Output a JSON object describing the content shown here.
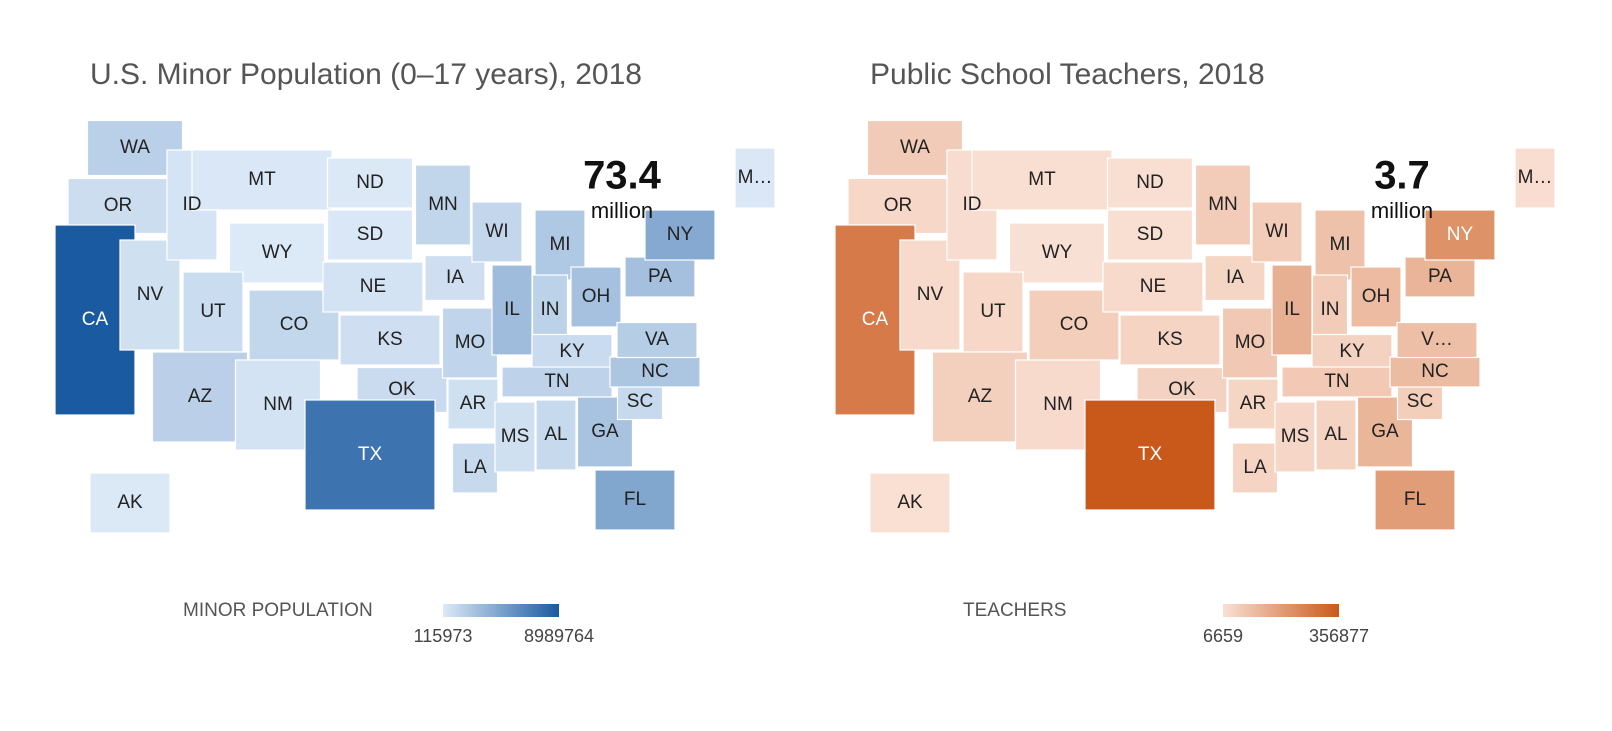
{
  "chart_data": [
    {
      "type": "choropleth",
      "title": "U.S. Minor Population (0–17 years), 2018",
      "headline": "73.4",
      "headline_unit": "million",
      "legend_title": "MINOR POPULATION",
      "legend_min": 115973,
      "legend_max": 8989764,
      "color_low": "#dce9f7",
      "color_high": "#1a5aa0",
      "regions": [
        "WA",
        "OR",
        "CA",
        "NV",
        "ID",
        "MT",
        "WY",
        "UT",
        "AZ",
        "CO",
        "NM",
        "ND",
        "SD",
        "NE",
        "KS",
        "OK",
        "TX",
        "MN",
        "IA",
        "MO",
        "AR",
        "LA",
        "WI",
        "IL",
        "MI",
        "IN",
        "OH",
        "KY",
        "TN",
        "MS",
        "AL",
        "GA",
        "FL",
        "SC",
        "NC",
        "VA",
        "PA",
        "NY",
        "M…",
        "AK"
      ],
      "values": [
        1690000,
        870000,
        8989764,
        700000,
        450000,
        230000,
        136000,
        930000,
        1640000,
        1260000,
        480000,
        180000,
        220000,
        470000,
        710000,
        960000,
        7400000,
        1300000,
        730000,
        1380000,
        700000,
        1100000,
        1280000,
        2880000,
        2190000,
        1570000,
        2610000,
        1000000,
        1500000,
        700000,
        1100000,
        2500000,
        4210000,
        1100000,
        2290000,
        1860000,
        2670000,
        4110000,
        250000,
        180000
      ]
    },
    {
      "type": "choropleth",
      "title": "Public School Teachers, 2018",
      "headline": "3.7",
      "headline_unit": "million",
      "legend_title": "TEACHERS",
      "legend_min": 6659,
      "legend_max": 356877,
      "color_low": "#f9e0d4",
      "color_high": "#c9591a",
      "regions": [
        "WA",
        "OR",
        "CA",
        "NV",
        "ID",
        "MT",
        "WY",
        "UT",
        "AZ",
        "CO",
        "NM",
        "ND",
        "SD",
        "NE",
        "KS",
        "OK",
        "TX",
        "MN",
        "IA",
        "MO",
        "AR",
        "LA",
        "WI",
        "IL",
        "MI",
        "IN",
        "OH",
        "KY",
        "TN",
        "MS",
        "AL",
        "GA",
        "FL",
        "SC",
        "NC",
        "V…",
        "PA",
        "NY",
        "M…",
        "AK"
      ],
      "values": [
        62000,
        30000,
        270000,
        23000,
        16000,
        10500,
        7500,
        29000,
        48000,
        53000,
        21000,
        9500,
        9800,
        23500,
        37000,
        42000,
        356877,
        58000,
        36000,
        68000,
        36000,
        39000,
        59000,
        131000,
        85000,
        59000,
        103000,
        42000,
        66000,
        32000,
        41000,
        115000,
        180000,
        53000,
        100000,
        91000,
        121000,
        210000,
        15000,
        7700
      ]
    }
  ]
}
